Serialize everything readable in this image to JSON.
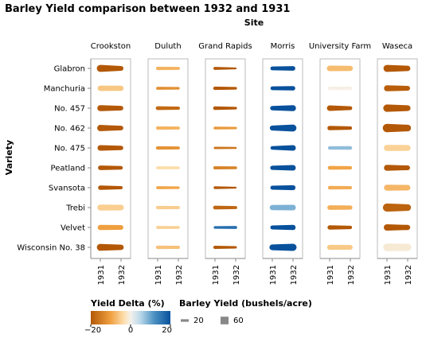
{
  "chart_data": {
    "type": "faceted-trail",
    "title": "Barley Yield comparison between 1932 and 1931",
    "facet_title": "Site",
    "ylabel": "Variety",
    "years": [
      "1931",
      "1932"
    ],
    "sites": [
      "Crookston",
      "Duluth",
      "Grand Rapids",
      "Morris",
      "University Farm",
      "Waseca"
    ],
    "varieties": [
      "Glabron",
      "Manchuria",
      "No. 457",
      "No. 462",
      "No. 475",
      "Peatland",
      "Svansota",
      "Trebi",
      "Velvet",
      "Wisconsin No. 38"
    ],
    "data": {
      "Crookston": {
        "Glabron": [
          55.2,
          38.0
        ],
        "Manchuria": [
          42.7,
          40.1
        ],
        "No. 457": [
          47.5,
          36.0
        ],
        "No. 462": [
          49.3,
          36.0
        ],
        "No. 475": [
          44.2,
          34.9
        ],
        "Peatland": [
          36.0,
          27.8
        ],
        "Svansota": [
          35.1,
          25.0
        ],
        "Trebi": [
          46.5,
          44.0
        ],
        "Velvet": [
          41.2,
          37.0
        ],
        "Wisconsin No. 38": [
          54.2,
          42.4
        ]
      },
      "Duluth": {
        "Glabron": [
          26.1,
          24.0
        ],
        "Manchuria": [
          23.7,
          20.8
        ],
        "No. 457": [
          29.7,
          24.5
        ],
        "No. 462": [
          26.1,
          24.0
        ],
        "No. 475": [
          27.1,
          23.9
        ],
        "Peatland": [
          22.8,
          21.9
        ],
        "Svansota": [
          23.2,
          21.0
        ],
        "Trebi": [
          26.0,
          24.6
        ],
        "Velvet": [
          23.3,
          22.1
        ],
        "Wisconsin No. 38": [
          26.8,
          25.0
        ]
      },
      "Grand Rapids": {
        "Glabron": [
          23.9,
          14.4
        ],
        "Manchuria": [
          26.8,
          20.0
        ],
        "No. 457": [
          28.3,
          20.0
        ],
        "No. 462": [
          21.9,
          19.5
        ],
        "No. 475": [
          19.0,
          16.0
        ],
        "Peatland": [
          25.6,
          22.0
        ],
        "Svansota": [
          21.1,
          14.0
        ],
        "Trebi": [
          29.3,
          24.0
        ],
        "Velvet": [
          19.8,
          23.0
        ],
        "Wisconsin No. 38": [
          25.0,
          18.0
        ]
      },
      "Morris": {
        "Glabron": [
          30.0,
          36.3
        ],
        "Manchuria": [
          29.0,
          35.1
        ],
        "No. 457": [
          34.0,
          46.5
        ],
        "No. 462": [
          39.0,
          54.0
        ],
        "No. 475": [
          28.6,
          44.1
        ],
        "Peatland": [
          33.0,
          43.3
        ],
        "Svansota": [
          30.5,
          38.9
        ],
        "Trebi": [
          40.5,
          44.1
        ],
        "Velvet": [
          31.0,
          41.0
        ],
        "Wisconsin No. 38": [
          45.0,
          56.0
        ]
      },
      "University Farm": {
        "Glabron": [
          43.1,
          40.0
        ],
        "Manchuria": [
          27.0,
          26.9
        ],
        "No. 457": [
          43.0,
          30.0
        ],
        "No. 462": [
          35.0,
          27.0
        ],
        "No. 475": [
          26.0,
          28.0
        ],
        "Peatland": [
          29.3,
          26.5
        ],
        "Svansota": [
          27.4,
          25.0
        ],
        "Trebi": [
          36.1,
          33.0
        ],
        "Velvet": [
          33.6,
          26.0
        ],
        "Wisconsin No. 38": [
          39.3,
          37.0
        ]
      },
      "Waseca": {
        "Glabron": [
          54.5,
          42.0
        ],
        "Manchuria": [
          47.0,
          38.0
        ],
        "No. 457": [
          58.1,
          45.0
        ],
        "No. 462": [
          65.8,
          52.0
        ],
        "No. 475": [
          48.4,
          46.0
        ],
        "Peatland": [
          47.3,
          37.0
        ],
        "Svansota": [
          46.6,
          43.0
        ],
        "Trebi": [
          63.8,
          52.0
        ],
        "Velvet": [
          50.0,
          40.0
        ],
        "Wisconsin No. 38": [
          58.8,
          58.0
        ]
      }
    },
    "color_legend": {
      "title": "Yield Delta (%)",
      "min": -20,
      "max": 20,
      "ticks": [
        -20,
        0,
        20
      ]
    },
    "size_legend": {
      "title": "Barley Yield (bushels/acre)",
      "values": [
        20,
        60
      ]
    },
    "colors": {
      "neg_dark": "#b35806",
      "neutral": "#f4f1ec",
      "pos_dark": "#08519c",
      "frame": "#bbbbbb",
      "axis": "#888888"
    }
  }
}
